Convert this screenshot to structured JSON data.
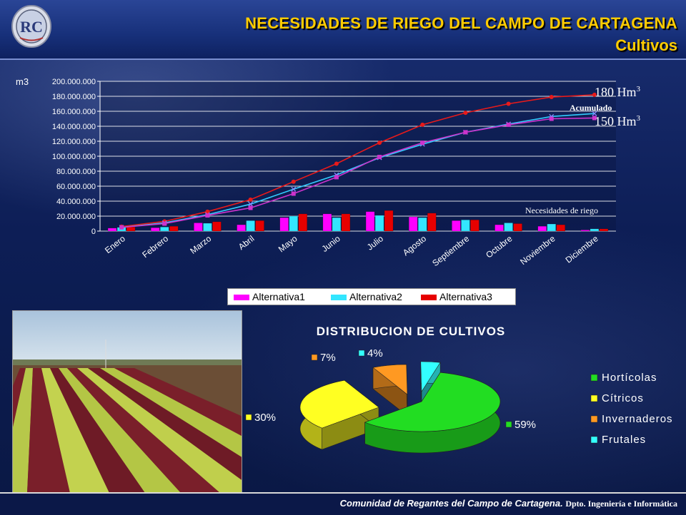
{
  "header": {
    "title_line1": "NECESIDADES DE RIEGO DEL CAMPO DE CARTAGENA",
    "title_line2": "Cultivos",
    "logo_text": "RC"
  },
  "colors": {
    "title": "#ffcc00",
    "alt1": "#ff00ff",
    "alt2": "#33e6ff",
    "alt3": "#e60000",
    "acum_high": "#e81a1a",
    "acum_mid": "#33ccff",
    "acum_low": "#cc33cc"
  },
  "chart_data": [
    {
      "type": "bar",
      "ylabel": "m3",
      "ylim": [
        0,
        200000000
      ],
      "yticks": [
        "0",
        "20.000.000",
        "40.000.000",
        "60.000.000",
        "80.000.000",
        "100.000.000",
        "120.000.000",
        "140.000.000",
        "160.000.000",
        "180.000.000",
        "200.000.000"
      ],
      "categories": [
        "Enero",
        "Febrero",
        "Marzo",
        "Abril",
        "Mayo",
        "Junio",
        "Julio",
        "Agosto",
        "Septiembre",
        "Octubre",
        "Noviembre",
        "Diciembre"
      ],
      "series": [
        {
          "name": "Alternativa1",
          "values": [
            4000000,
            4500000,
            11000000,
            8500000,
            18000000,
            23000000,
            26000000,
            19000000,
            14000000,
            8500000,
            6500000,
            1500000
          ]
        },
        {
          "name": "Alternativa2",
          "values": [
            5000000,
            5500000,
            10500000,
            14000000,
            20000000,
            18000000,
            21000000,
            18000000,
            15000000,
            11000000,
            9500000,
            3000000
          ]
        },
        {
          "name": "Alternativa3",
          "values": [
            5500000,
            6500000,
            12500000,
            14000000,
            23000000,
            23000000,
            27500000,
            24000000,
            15000000,
            10000000,
            8500000,
            3000000
          ]
        }
      ],
      "cumulative_lines": [
        {
          "values": [
            6000000,
            13000000,
            26000000,
            42000000,
            66000000,
            90000000,
            118000000,
            142000000,
            158000000,
            170000000,
            179000000,
            182000000
          ]
        },
        {
          "values": [
            5000000,
            11000000,
            22000000,
            36000000,
            56000000,
            75000000,
            98000000,
            116000000,
            132000000,
            143000000,
            153000000,
            157000000
          ]
        },
        {
          "values": [
            5000000,
            10000000,
            21000000,
            31000000,
            50000000,
            72000000,
            99000000,
            118000000,
            132000000,
            142000000,
            150000000,
            151000000
          ]
        }
      ],
      "annotations": {
        "high": "180 Hm",
        "low": "150 Hm",
        "superscript": "3",
        "acumulado": "Acumulado",
        "necesidades": "Necesidades de riego"
      }
    },
    {
      "type": "pie",
      "title": "DISTRIBUCION DE CULTIVOS",
      "labels": [
        "Hortícolas",
        "Cítricos",
        "Invernaderos",
        "Frutales"
      ],
      "values": [
        59,
        30,
        7,
        4
      ],
      "value_labels": [
        "59%",
        "30%",
        "7%",
        "4%"
      ],
      "colors": [
        "#22dd22",
        "#ffff22",
        "#ff9922",
        "#33ffff"
      ]
    }
  ],
  "footer": {
    "org": "Comunidad de Regantes del Campo de Cartagena.",
    "dept": "Dpto. Ingeniería e Informática"
  }
}
